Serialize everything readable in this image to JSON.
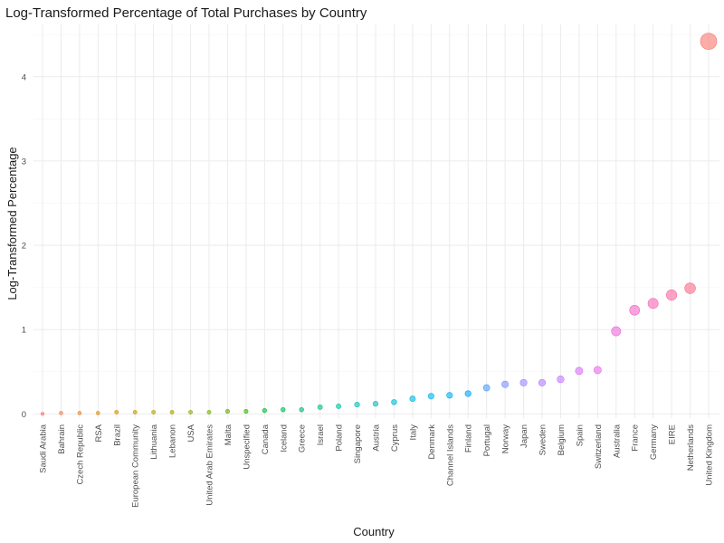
{
  "chart_data": {
    "type": "scatter",
    "title": "Log-Transformed Percentage of Total Purchases by Country",
    "xlabel": "Country",
    "ylabel": "Log-Transformed Percentage",
    "ylim": [
      -0.05,
      4.62
    ],
    "yticks": [
      0,
      1,
      2,
      3,
      4
    ],
    "grid": true,
    "legend": "none",
    "categories": [
      "Saudi Arabia",
      "Bahrain",
      "Czech Republic",
      "RSA",
      "Brazil",
      "European Community",
      "Lithuania",
      "Lebanon",
      "USA",
      "United Arab Emirates",
      "Malta",
      "Unspecified",
      "Canada",
      "Iceland",
      "Greece",
      "Israel",
      "Poland",
      "Singapore",
      "Austria",
      "Cyprus",
      "Italy",
      "Denmark",
      "Channel Islands",
      "Finland",
      "Portugal",
      "Norway",
      "Japan",
      "Sweden",
      "Belgium",
      "Spain",
      "Switzerland",
      "Australia",
      "France",
      "Germany",
      "EIRE",
      "Netherlands",
      "United Kingdom"
    ],
    "values": [
      0.001,
      0.01,
      0.01,
      0.01,
      0.02,
      0.02,
      0.02,
      0.02,
      0.02,
      0.02,
      0.03,
      0.03,
      0.04,
      0.05,
      0.05,
      0.08,
      0.09,
      0.11,
      0.12,
      0.14,
      0.18,
      0.21,
      0.22,
      0.24,
      0.31,
      0.35,
      0.37,
      0.37,
      0.41,
      0.51,
      0.52,
      0.98,
      1.23,
      1.31,
      1.41,
      1.49,
      4.42
    ],
    "sizes": [
      0.001,
      0.01,
      0.01,
      0.01,
      0.02,
      0.02,
      0.02,
      0.02,
      0.02,
      0.02,
      0.03,
      0.03,
      0.04,
      0.05,
      0.05,
      0.08,
      0.09,
      0.11,
      0.12,
      0.14,
      0.18,
      0.21,
      0.22,
      0.24,
      0.31,
      0.35,
      0.37,
      0.37,
      0.41,
      0.51,
      0.52,
      0.98,
      1.23,
      1.31,
      1.41,
      1.49,
      4.42
    ],
    "colors": [
      "#F8766D",
      "#F07E4B",
      "#E8862A",
      "#DC8D00",
      "#CF9400",
      "#C19A00",
      "#B2A000",
      "#A1A500",
      "#8EAA00",
      "#79AF00",
      "#5FB400",
      "#36B800",
      "#00BA38",
      "#00BC59",
      "#00BE73",
      "#00C08B",
      "#00C1A0",
      "#00C1B4",
      "#00C0C6",
      "#00BDD6",
      "#00B9E3",
      "#00B4EF",
      "#00AEF8",
      "#00A6FF",
      "#4D9DFF",
      "#7A93FF",
      "#9A88FF",
      "#B37FFF",
      "#C777FF",
      "#D772F5",
      "#E36EE8",
      "#EC6AD8",
      "#F367C6",
      "#F766B2",
      "#FA689D",
      "#FA6C87",
      "#F8766D"
    ]
  }
}
